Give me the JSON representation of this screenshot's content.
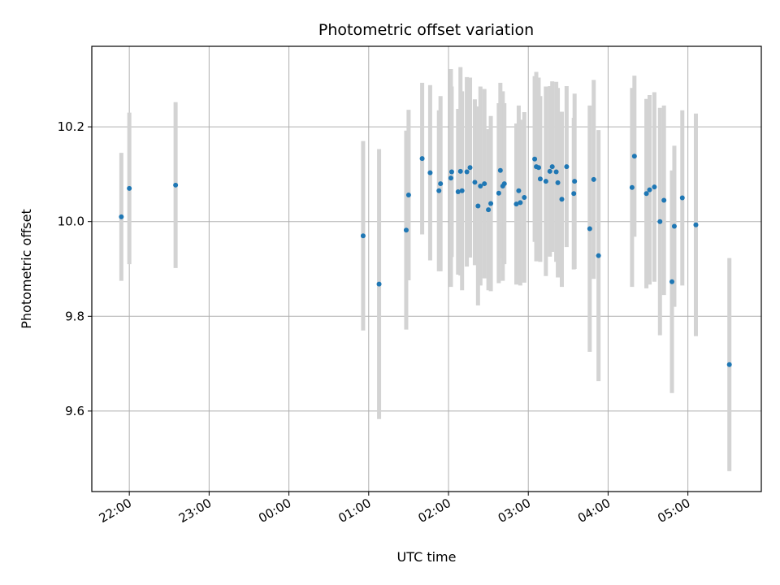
{
  "chart_data": {
    "type": "scatter",
    "title": "Photometric offset variation",
    "xlabel": "UTC time",
    "ylabel": "Photometric offset",
    "x_unit": "UTC hours relative to midnight (negative = previous day)",
    "xlim": [
      -2.47,
      5.92
    ],
    "ylim": [
      9.43,
      10.37
    ],
    "x_ticks": [
      {
        "value": -2,
        "label": "22:00"
      },
      {
        "value": -1,
        "label": "23:00"
      },
      {
        "value": 0,
        "label": "00:00"
      },
      {
        "value": 1,
        "label": "01:00"
      },
      {
        "value": 2,
        "label": "02:00"
      },
      {
        "value": 3,
        "label": "03:00"
      },
      {
        "value": 4,
        "label": "04:00"
      },
      {
        "value": 5,
        "label": "05:00"
      }
    ],
    "y_ticks": [
      {
        "value": 9.6,
        "label": "9.6"
      },
      {
        "value": 9.8,
        "label": "9.8"
      },
      {
        "value": 10.0,
        "label": "10.0"
      },
      {
        "value": 10.2,
        "label": "10.2"
      }
    ],
    "grid": true,
    "marker_color": "#1f77b4",
    "errorbar_color": "#d3d3d3",
    "points": [
      {
        "x": -2.1,
        "y": 10.01,
        "err": 0.135
      },
      {
        "x": -2.0,
        "y": 10.07,
        "err": 0.16
      },
      {
        "x": -1.42,
        "y": 10.077,
        "err": 0.175
      },
      {
        "x": 0.93,
        "y": 9.97,
        "err": 0.2
      },
      {
        "x": 1.13,
        "y": 9.868,
        "err": 0.285
      },
      {
        "x": 1.47,
        "y": 9.982,
        "err": 0.21
      },
      {
        "x": 1.5,
        "y": 10.056,
        "err": 0.18
      },
      {
        "x": 1.67,
        "y": 10.133,
        "err": 0.16
      },
      {
        "x": 1.77,
        "y": 10.103,
        "err": 0.185
      },
      {
        "x": 1.88,
        "y": 10.065,
        "err": 0.17
      },
      {
        "x": 1.9,
        "y": 10.08,
        "err": 0.185
      },
      {
        "x": 2.03,
        "y": 10.092,
        "err": 0.23
      },
      {
        "x": 2.04,
        "y": 10.105,
        "err": 0.18
      },
      {
        "x": 2.12,
        "y": 10.063,
        "err": 0.175
      },
      {
        "x": 2.15,
        "y": 10.106,
        "err": 0.22
      },
      {
        "x": 2.17,
        "y": 10.065,
        "err": 0.21
      },
      {
        "x": 2.23,
        "y": 10.105,
        "err": 0.2
      },
      {
        "x": 2.27,
        "y": 10.114,
        "err": 0.19
      },
      {
        "x": 2.33,
        "y": 10.083,
        "err": 0.175
      },
      {
        "x": 2.37,
        "y": 10.033,
        "err": 0.21
      },
      {
        "x": 2.4,
        "y": 10.075,
        "err": 0.21
      },
      {
        "x": 2.45,
        "y": 10.08,
        "err": 0.2
      },
      {
        "x": 2.5,
        "y": 10.025,
        "err": 0.17
      },
      {
        "x": 2.53,
        "y": 10.038,
        "err": 0.185
      },
      {
        "x": 2.63,
        "y": 10.06,
        "err": 0.19
      },
      {
        "x": 2.65,
        "y": 10.108,
        "err": 0.185
      },
      {
        "x": 2.68,
        "y": 10.075,
        "err": 0.2
      },
      {
        "x": 2.7,
        "y": 10.08,
        "err": 0.17
      },
      {
        "x": 2.85,
        "y": 10.037,
        "err": 0.17
      },
      {
        "x": 2.88,
        "y": 10.065,
        "err": 0.18
      },
      {
        "x": 2.9,
        "y": 10.04,
        "err": 0.175
      },
      {
        "x": 2.95,
        "y": 10.051,
        "err": 0.18
      },
      {
        "x": 3.08,
        "y": 10.132,
        "err": 0.175
      },
      {
        "x": 3.1,
        "y": 10.116,
        "err": 0.2
      },
      {
        "x": 3.13,
        "y": 10.114,
        "err": 0.19
      },
      {
        "x": 3.15,
        "y": 10.09,
        "err": 0.175
      },
      {
        "x": 3.22,
        "y": 10.085,
        "err": 0.2
      },
      {
        "x": 3.27,
        "y": 10.106,
        "err": 0.18
      },
      {
        "x": 3.3,
        "y": 10.116,
        "err": 0.18
      },
      {
        "x": 3.35,
        "y": 10.105,
        "err": 0.19
      },
      {
        "x": 3.37,
        "y": 10.082,
        "err": 0.2
      },
      {
        "x": 3.42,
        "y": 10.047,
        "err": 0.185
      },
      {
        "x": 3.48,
        "y": 10.116,
        "err": 0.17
      },
      {
        "x": 3.57,
        "y": 10.059,
        "err": 0.16
      },
      {
        "x": 3.58,
        "y": 10.085,
        "err": 0.185
      },
      {
        "x": 3.77,
        "y": 9.985,
        "err": 0.26
      },
      {
        "x": 3.82,
        "y": 10.089,
        "err": 0.21
      },
      {
        "x": 3.88,
        "y": 9.928,
        "err": 0.265
      },
      {
        "x": 4.3,
        "y": 10.072,
        "err": 0.21
      },
      {
        "x": 4.33,
        "y": 10.138,
        "err": 0.17
      },
      {
        "x": 4.48,
        "y": 10.059,
        "err": 0.2
      },
      {
        "x": 4.52,
        "y": 10.067,
        "err": 0.2
      },
      {
        "x": 4.58,
        "y": 10.073,
        "err": 0.2
      },
      {
        "x": 4.65,
        "y": 10.0,
        "err": 0.24
      },
      {
        "x": 4.7,
        "y": 10.045,
        "err": 0.2
      },
      {
        "x": 4.8,
        "y": 9.873,
        "err": 0.235
      },
      {
        "x": 4.83,
        "y": 9.99,
        "err": 0.17
      },
      {
        "x": 4.93,
        "y": 10.05,
        "err": 0.185
      },
      {
        "x": 5.1,
        "y": 9.993,
        "err": 0.235
      },
      {
        "x": 5.52,
        "y": 9.698,
        "err": 0.225
      }
    ]
  }
}
